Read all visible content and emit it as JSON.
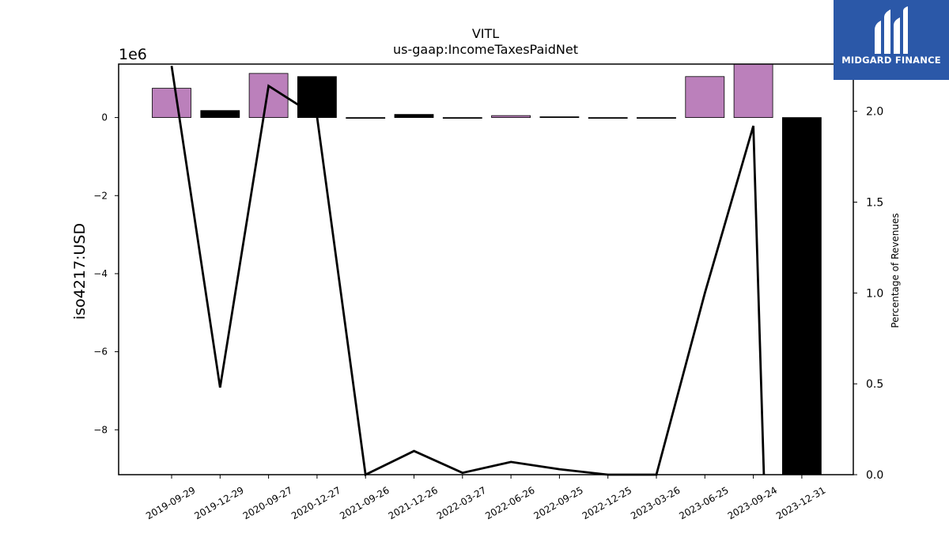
{
  "chart_data": {
    "type": "bar+line",
    "title": "VITL",
    "subtitle": "us-gaap:IncomeTaxesPaidNet",
    "ylabel": "iso4217:USD",
    "y2label": "Percentage of Revenues",
    "scale_label": "1e6",
    "categories": [
      "2019-09-29",
      "2019-12-29",
      "2020-09-27",
      "2020-12-27",
      "2021-09-26",
      "2021-12-26",
      "2022-03-27",
      "2022-06-26",
      "2022-09-25",
      "2022-12-25",
      "2023-03-26",
      "2023-06-25",
      "2023-09-24",
      "2023-12-31"
    ],
    "bar_values": [
      750000,
      180000,
      1130000,
      1050000,
      -10000,
      80000,
      -10000,
      50000,
      20000,
      -10000,
      -10000,
      1050000,
      1370000,
      -9150000
    ],
    "bar_colors": [
      "#bb80bb",
      "#000000",
      "#bb80bb",
      "#000000",
      "#000000",
      "#000000",
      "#000000",
      "#bb80bb",
      "#000000",
      "#000000",
      "#000000",
      "#bb80bb",
      "#bb80bb",
      "#000000"
    ],
    "line_values": [
      2.25,
      0.48,
      2.14,
      1.97,
      0.0,
      0.13,
      0.01,
      0.07,
      0.03,
      0.0,
      0.0,
      1.0,
      1.92,
      0.0
    ],
    "ylim": [
      -9150000,
      1370000
    ],
    "y2lim": [
      0,
      2.26
    ],
    "yticks": [
      0,
      -2,
      -4,
      -6,
      -8
    ],
    "ytick_labels": [
      "0",
      "−2",
      "−4",
      "−6",
      "−8"
    ],
    "y2ticks": [
      0.0,
      0.5,
      1.0,
      1.5,
      2.0
    ],
    "y2tick_labels": [
      "0.0",
      "0.5",
      "1.0",
      "1.5",
      "2.0"
    ],
    "grid": false,
    "legend": "none"
  },
  "logo": {
    "text": "MIDGARD FINANCE"
  }
}
